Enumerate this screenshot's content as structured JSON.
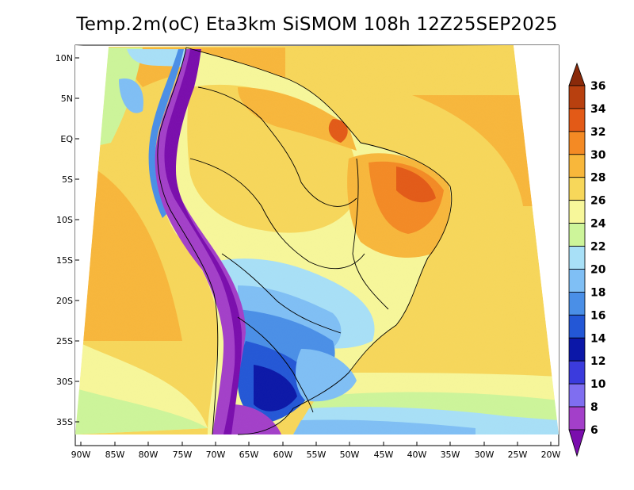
{
  "title": "Temp.2m(oC) Eta3km SiSMOM 108h 12Z25SEP2025",
  "lat_labels": [
    "10N",
    "5N",
    "EQ",
    "5S",
    "10S",
    "15S",
    "20S",
    "25S",
    "30S",
    "35S"
  ],
  "lon_labels": [
    "90W",
    "85W",
    "80W",
    "75W",
    "70W",
    "65W",
    "60W",
    "55W",
    "50W",
    "45W",
    "40W",
    "35W",
    "30W",
    "25W",
    "20W"
  ],
  "colorbar": {
    "levels": [
      "6",
      "8",
      "10",
      "12",
      "14",
      "16",
      "18",
      "20",
      "22",
      "24",
      "26",
      "28",
      "30",
      "32",
      "34",
      "36"
    ],
    "colors": [
      "#7a0dad",
      "#a33fc9",
      "#7f6ef0",
      "#3b3bdd",
      "#0b17a8",
      "#2357d6",
      "#4a8fe7",
      "#7fbff5",
      "#a8e0f7",
      "#cdf59a",
      "#f7f79a",
      "#f7d75a",
      "#f8b73b",
      "#f48a24",
      "#e35a17",
      "#b8400f",
      "#8a2a0a"
    ]
  },
  "palette": {
    "ocean_warm": "#f8b73b",
    "ocean_mid": "#f7d75a",
    "ocean_cool": "#f7f79a",
    "coast_cool": "#cdf59a",
    "andes": "#7a0dad",
    "hot_ne": "#e35a17",
    "south_cold": "#2357d6"
  }
}
